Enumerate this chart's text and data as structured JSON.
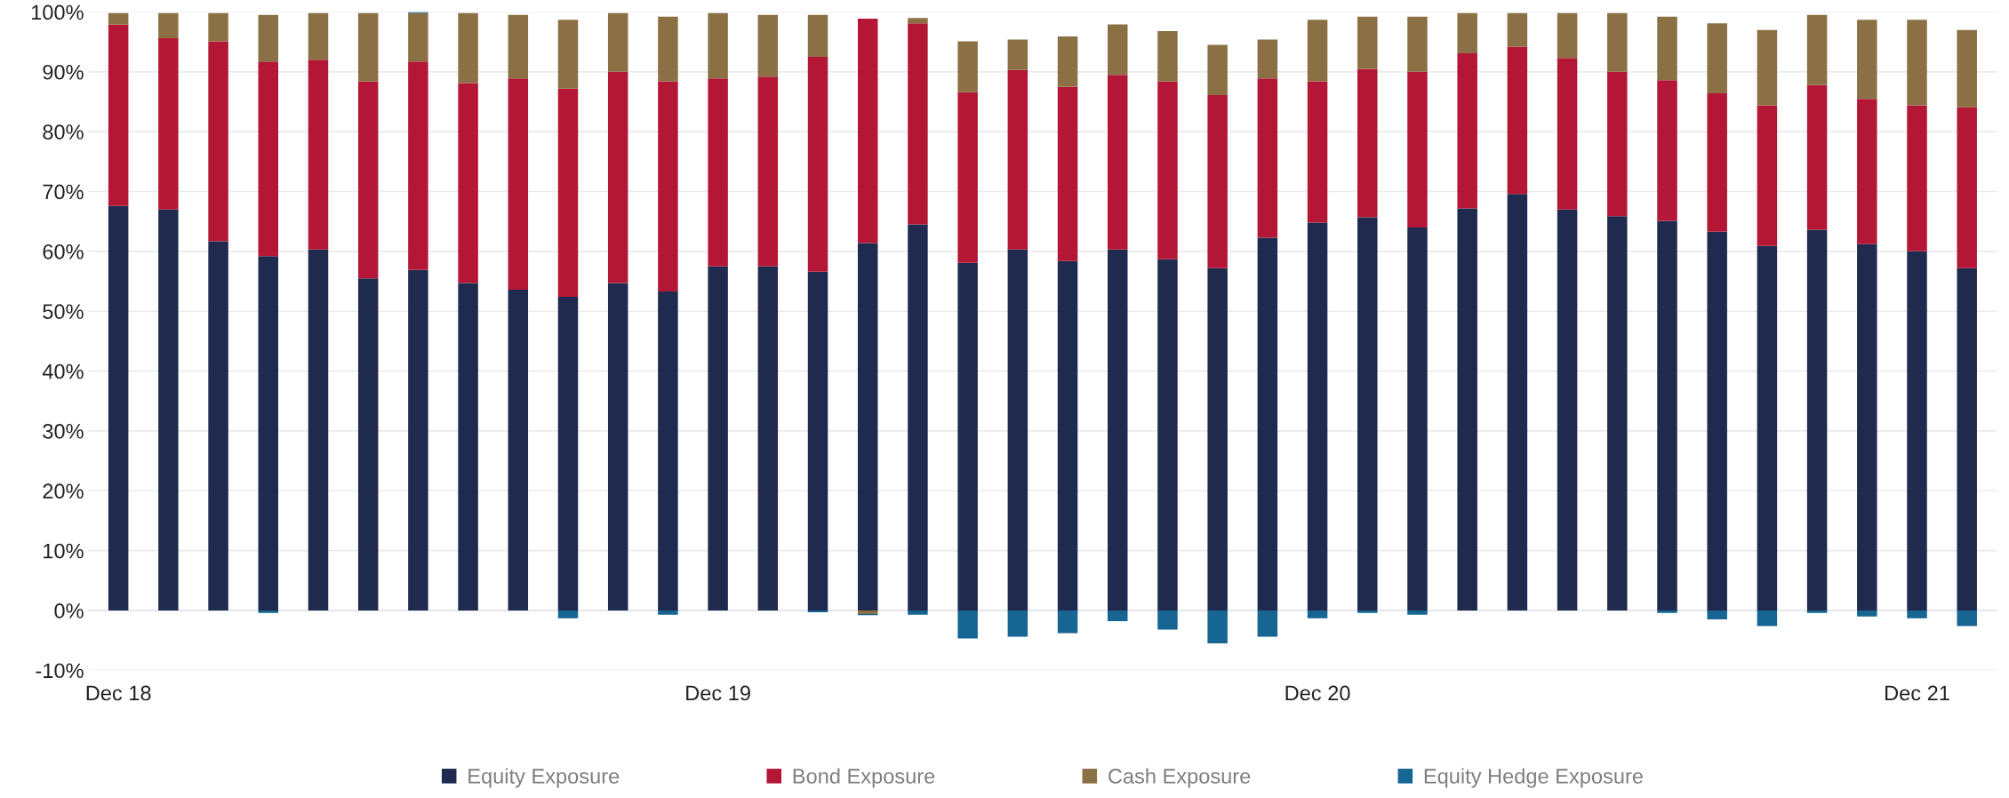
{
  "chart_data": {
    "type": "bar",
    "stacked": true,
    "categories": [
      "Dec 18",
      null,
      null,
      null,
      null,
      null,
      null,
      null,
      null,
      null,
      null,
      null,
      "Dec 19",
      null,
      null,
      null,
      null,
      null,
      null,
      null,
      null,
      null,
      null,
      null,
      "Dec 20",
      null,
      null,
      null,
      null,
      null,
      null,
      null,
      null,
      null,
      null,
      null,
      "Dec 21",
      null
    ],
    "series": [
      {
        "name": "Equity Exposure",
        "color": "#1f2a4e",
        "values": [
          67.6,
          67.0,
          61.7,
          59.2,
          60.3,
          55.5,
          56.9,
          54.7,
          53.6,
          52.4,
          54.7,
          53.3,
          57.5,
          57.5,
          56.6,
          61.4,
          64.5,
          58.1,
          60.3,
          58.4,
          60.3,
          58.7,
          57.2,
          62.3,
          64.8,
          65.7,
          64.0,
          67.2,
          69.6,
          67.0,
          65.9,
          65.1,
          63.3,
          60.9,
          63.6,
          61.2,
          60.0,
          57.2
        ]
      },
      {
        "name": "Bond Exposure",
        "color": "#b41736",
        "values": [
          30.3,
          28.6,
          33.4,
          32.5,
          31.7,
          32.9,
          34.8,
          33.4,
          35.3,
          34.8,
          35.3,
          35.1,
          31.4,
          31.7,
          35.9,
          37.5,
          33.6,
          28.5,
          30.0,
          29.1,
          29.2,
          29.7,
          28.9,
          26.6,
          23.6,
          24.8,
          26.0,
          25.9,
          24.6,
          25.3,
          24.1,
          23.5,
          23.1,
          23.5,
          24.2,
          24.3,
          24.4,
          26.9
        ]
      },
      {
        "name": "Cash Exposure",
        "color": "#8b7045",
        "values": [
          1.9,
          4.2,
          4.7,
          7.8,
          7.8,
          11.4,
          8.1,
          11.7,
          10.6,
          11.5,
          9.8,
          10.8,
          10.9,
          10.3,
          7.0,
          -0.6,
          0.9,
          8.5,
          5.1,
          8.4,
          8.4,
          8.4,
          8.4,
          6.5,
          10.3,
          8.7,
          9.2,
          6.7,
          5.6,
          7.5,
          9.8,
          10.6,
          11.7,
          12.6,
          11.7,
          13.2,
          14.3,
          12.9
        ]
      },
      {
        "name": "Equity Hedge Exposure",
        "color": "#176593",
        "values": [
          0,
          0,
          0,
          -0.4,
          0,
          0,
          0.2,
          0,
          0,
          -1.3,
          0,
          -0.7,
          0,
          0,
          -0.3,
          -0.2,
          -0.7,
          -4.7,
          -4.4,
          -3.8,
          -1.8,
          -3.2,
          -5.5,
          -4.4,
          -1.3,
          -0.4,
          -0.7,
          0,
          0,
          0,
          0,
          -0.4,
          -1.5,
          -2.6,
          -0.4,
          -1.0,
          -1.3,
          -2.6
        ]
      }
    ],
    "ylim": [
      -10,
      100
    ],
    "yticks": [
      {
        "value": -10,
        "label": "-10%"
      },
      {
        "value": 0,
        "label": "0%"
      },
      {
        "value": 10,
        "label": "10%"
      },
      {
        "value": 20,
        "label": "20%"
      },
      {
        "value": 30,
        "label": "30%"
      },
      {
        "value": 40,
        "label": "40%"
      },
      {
        "value": 50,
        "label": "50%"
      },
      {
        "value": 60,
        "label": "60%"
      },
      {
        "value": 70,
        "label": "70%"
      },
      {
        "value": 80,
        "label": "80%"
      },
      {
        "value": 90,
        "label": "90%"
      },
      {
        "value": 100,
        "label": "100%"
      }
    ],
    "grid": "y",
    "legend": "bottom"
  }
}
